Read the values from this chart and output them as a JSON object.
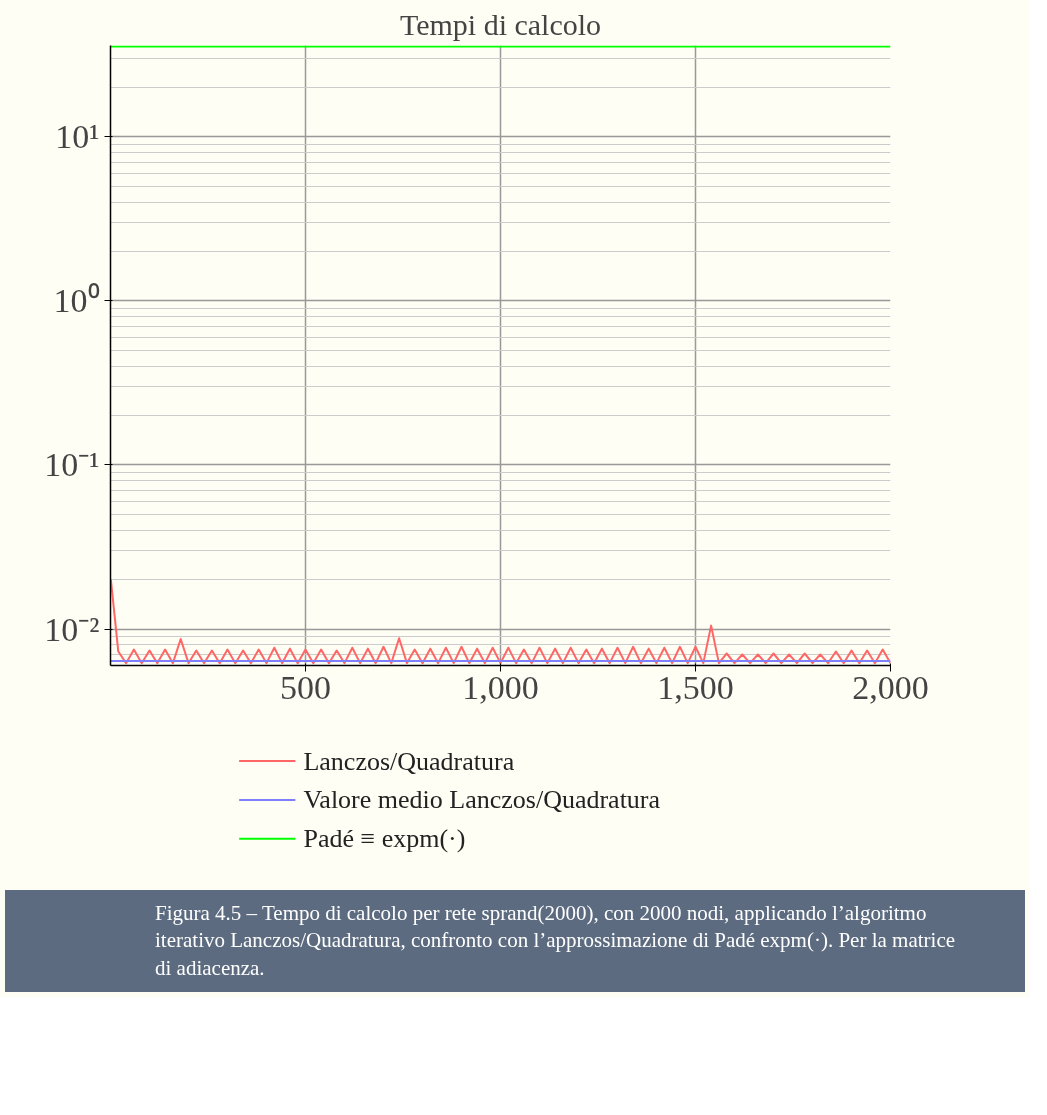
{
  "chart_data": {
    "type": "line",
    "title": "Tempi di calcolo",
    "log": "y",
    "grid": true,
    "legend": "bottom",
    "marker": "none",
    "line_style": "solid",
    "xlim": [
      0,
      2000
    ],
    "ylim": [
      0.006,
      36
    ],
    "xticks": [
      500,
      {
        "value": 1000,
        "label": "1,000"
      },
      {
        "value": 1500,
        "label": "1,500"
      },
      {
        "value": 2000,
        "label": "2,000"
      }
    ],
    "yticks": [
      {
        "value": 0.01,
        "label": "10⁻²"
      },
      {
        "value": 0.1,
        "label": "10⁻¹"
      },
      {
        "value": 1,
        "label": "10⁰"
      },
      {
        "value": 10,
        "label": "10¹"
      }
    ],
    "series": [
      {
        "name": "Lanczos/Quadratura",
        "color": "#ff6666",
        "x": [
          1,
          20,
          40,
          60,
          80,
          100,
          120,
          140,
          160,
          180,
          200,
          220,
          240,
          260,
          280,
          300,
          320,
          340,
          360,
          380,
          400,
          420,
          440,
          460,
          480,
          500,
          520,
          540,
          560,
          580,
          600,
          620,
          640,
          660,
          680,
          700,
          720,
          740,
          760,
          780,
          800,
          820,
          840,
          860,
          880,
          900,
          920,
          940,
          960,
          980,
          1000,
          1020,
          1040,
          1060,
          1080,
          1100,
          1120,
          1140,
          1160,
          1180,
          1200,
          1220,
          1240,
          1260,
          1280,
          1300,
          1320,
          1340,
          1360,
          1380,
          1400,
          1420,
          1440,
          1460,
          1480,
          1500,
          1520,
          1540,
          1560,
          1580,
          1600,
          1620,
          1640,
          1660,
          1680,
          1700,
          1720,
          1740,
          1760,
          1780,
          1800,
          1820,
          1840,
          1860,
          1880,
          1900,
          1920,
          1940,
          1960,
          1980,
          2000
        ],
        "values": [
          0.02,
          0.0073,
          0.0062,
          0.0075,
          0.0062,
          0.0074,
          0.0062,
          0.0075,
          0.0062,
          0.0087,
          0.0062,
          0.0074,
          0.0062,
          0.0074,
          0.0062,
          0.0075,
          0.0062,
          0.0074,
          0.0062,
          0.0075,
          0.0062,
          0.0077,
          0.0062,
          0.0076,
          0.0062,
          0.0075,
          0.0062,
          0.0075,
          0.0062,
          0.0074,
          0.0062,
          0.0077,
          0.0062,
          0.0076,
          0.0062,
          0.0078,
          0.0062,
          0.0088,
          0.0062,
          0.0075,
          0.0062,
          0.0076,
          0.0062,
          0.0077,
          0.0062,
          0.0078,
          0.0062,
          0.0076,
          0.0062,
          0.0077,
          0.0062,
          0.0077,
          0.0062,
          0.0075,
          0.0062,
          0.0077,
          0.0062,
          0.0076,
          0.0062,
          0.0077,
          0.0062,
          0.0075,
          0.0062,
          0.0076,
          0.0062,
          0.0077,
          0.0062,
          0.0078,
          0.0062,
          0.0076,
          0.0062,
          0.0077,
          0.0062,
          0.0078,
          0.0062,
          0.0078,
          0.0062,
          0.0105,
          0.0062,
          0.0071,
          0.0062,
          0.007,
          0.0062,
          0.007,
          0.0062,
          0.0071,
          0.0062,
          0.007,
          0.0062,
          0.0071,
          0.0062,
          0.007,
          0.0062,
          0.0073,
          0.0062,
          0.0074,
          0.0062,
          0.0074,
          0.0062,
          0.0075,
          0.0062
        ]
      },
      {
        "name": "Valore medio Lanczos/Quadratura",
        "color": "#8080ff",
        "x": [
          1,
          2000
        ],
        "values": [
          0.0064,
          0.0064
        ]
      },
      {
        "name": "Padé ≡ expm(·)",
        "color": "#00ff00",
        "x": [
          1,
          2000
        ],
        "values": [
          35.5,
          35.5
        ]
      }
    ],
    "annotations": [
      "Figura 4.5 – Tempo di calcolo per rete sprand(2000), con 2000 nodi, applicando l’algoritmo iterativo Lanczos/Quadratura, confronto con l’approssimazione di Padé expm(·). Per la matrice di adiacenza."
    ]
  }
}
